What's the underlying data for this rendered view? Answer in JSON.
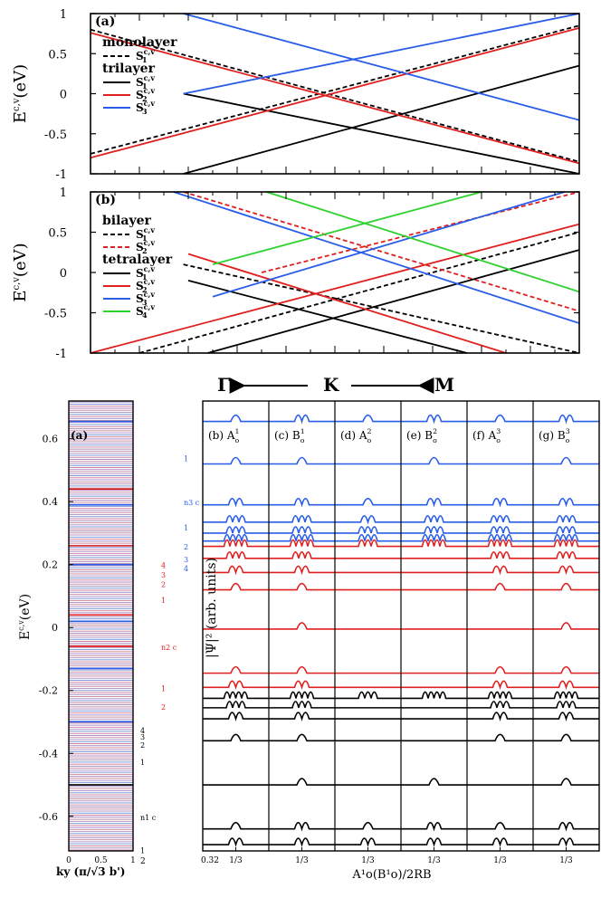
{
  "chart_data": [
    {
      "type": "line",
      "panel_label": "(a)",
      "ylabel": "E^{c,v} (eV)",
      "ylim": [
        -1,
        1
      ],
      "y_ticks": [
        "1",
        "0.5",
        "0",
        "-0.5",
        "-1"
      ],
      "x_path": [
        "Γ",
        "K",
        "M"
      ],
      "legend": [
        {
          "heading": "monolayer"
        },
        {
          "name": "S1 c,v",
          "sub": "1",
          "color": "#000000",
          "dash": true
        },
        {
          "heading": "trilayer"
        },
        {
          "name": "S1 c,v",
          "sub": "1",
          "color": "#000000",
          "dash": false
        },
        {
          "name": "S2 c,v",
          "sub": "2",
          "color": "#e02020",
          "dash": false
        },
        {
          "name": "S3 c,v",
          "sub": "3",
          "color": "#2a5de8",
          "dash": false
        }
      ],
      "series": [
        {
          "name": "mono c",
          "color": "#000000",
          "dash": true,
          "x": [
            0,
            1
          ],
          "y": [
            0.8,
            -0.85
          ]
        },
        {
          "name": "mono v",
          "color": "#000000",
          "dash": true,
          "x": [
            0,
            1
          ],
          "y": [
            -0.75,
            0.85
          ]
        },
        {
          "name": "S1 c",
          "color": "#000000",
          "dash": false,
          "x": [
            0.19,
            1
          ],
          "y": [
            0.0,
            -1.0
          ]
        },
        {
          "name": "S1 v",
          "color": "#000000",
          "dash": false,
          "x": [
            0.19,
            1
          ],
          "y": [
            -1.0,
            0.35
          ]
        },
        {
          "name": "S2 c",
          "color": "#e02020",
          "dash": false,
          "x": [
            0,
            1
          ],
          "y": [
            0.76,
            -0.87
          ]
        },
        {
          "name": "S2 v",
          "color": "#e02020",
          "dash": false,
          "x": [
            0,
            1
          ],
          "y": [
            -0.8,
            0.82
          ]
        },
        {
          "name": "S3 c",
          "color": "#2a5de8",
          "dash": false,
          "x": [
            0.19,
            1
          ],
          "y": [
            1.0,
            -0.33
          ]
        },
        {
          "name": "S3 v",
          "color": "#2a5de8",
          "dash": false,
          "x": [
            0.19,
            1
          ],
          "y": [
            0.0,
            1.0
          ]
        }
      ]
    },
    {
      "type": "line",
      "panel_label": "(b)",
      "ylabel": "E^{c,v} (eV)",
      "ylim": [
        -1,
        1
      ],
      "y_ticks": [
        "1",
        "0.5",
        "0",
        "-0.5",
        "-1"
      ],
      "x_path": [
        "Γ",
        "K",
        "M"
      ],
      "legend": [
        {
          "heading": "bilayer"
        },
        {
          "name": "S1 c,v",
          "sub": "1",
          "color": "#000000",
          "dash": true
        },
        {
          "name": "S2 c,v",
          "sub": "2",
          "color": "#e02020",
          "dash": true
        },
        {
          "heading": "tetralayer"
        },
        {
          "name": "S1 c,v",
          "sub": "1",
          "color": "#000000",
          "dash": false
        },
        {
          "name": "S2 c,v",
          "sub": "2",
          "color": "#e02020",
          "dash": false
        },
        {
          "name": "S3 c,v",
          "sub": "3",
          "color": "#2a5de8",
          "dash": false
        },
        {
          "name": "S4 c,v",
          "sub": "4",
          "color": "#2ed22e",
          "dash": false
        }
      ],
      "series": [
        {
          "name": "bi S1 c",
          "color": "#000000",
          "dash": true,
          "x": [
            0.19,
            1
          ],
          "y": [
            0.1,
            -1.0
          ]
        },
        {
          "name": "bi S1 v",
          "color": "#000000",
          "dash": true,
          "x": [
            0.1,
            1
          ],
          "y": [
            -1.0,
            0.5
          ]
        },
        {
          "name": "bi S2 c",
          "color": "#e02020",
          "dash": true,
          "x": [
            0.19,
            1
          ],
          "y": [
            1.0,
            -0.48
          ]
        },
        {
          "name": "bi S2 v",
          "color": "#e02020",
          "dash": true,
          "x": [
            0.35,
            1
          ],
          "y": [
            0.0,
            1.0
          ]
        },
        {
          "name": "S1 c",
          "color": "#000000",
          "dash": false,
          "x": [
            0.2,
            0.77
          ],
          "y": [
            -0.1,
            -1.0
          ]
        },
        {
          "name": "S1 v",
          "color": "#000000",
          "dash": false,
          "x": [
            0.24,
            1
          ],
          "y": [
            -1.0,
            0.28
          ]
        },
        {
          "name": "S2 c",
          "color": "#e02020",
          "dash": false,
          "x": [
            0.2,
            0.85
          ],
          "y": [
            0.23,
            -1.0
          ]
        },
        {
          "name": "S2 v",
          "color": "#e02020",
          "dash": false,
          "x": [
            0,
            1
          ],
          "y": [
            -1.0,
            0.6
          ]
        },
        {
          "name": "S3 c",
          "color": "#2a5de8",
          "dash": false,
          "x": [
            0.17,
            1
          ],
          "y": [
            1.0,
            -0.63
          ]
        },
        {
          "name": "S3 v",
          "color": "#2a5de8",
          "dash": false,
          "x": [
            0.25,
            0.97
          ],
          "y": [
            -0.3,
            1.0
          ]
        },
        {
          "name": "S4 c",
          "color": "#2ed22e",
          "dash": false,
          "x": [
            0.36,
            1
          ],
          "y": [
            1.0,
            -0.24
          ]
        },
        {
          "name": "S4 v",
          "color": "#2ed22e",
          "dash": false,
          "x": [
            0.25,
            0.8
          ],
          "y": [
            0.1,
            1.0
          ]
        }
      ]
    },
    {
      "type": "line",
      "panel_label": "(a)",
      "description": "Landau-level energy spectrum",
      "ylabel": "E^{c,v} (eV)",
      "xlabel": "ky (π/√3 b')",
      "xlim": [
        0,
        1
      ],
      "ylim": [
        -0.71,
        0.72
      ],
      "x_ticks": [
        "0",
        "0.5",
        "1"
      ],
      "y_ticks": [
        "0.6",
        "0.4",
        "0.2",
        "0",
        "-0.2",
        "-0.4",
        "-0.6"
      ],
      "level_labels": [
        {
          "text": "1",
          "color": "#2a5de8",
          "e": 0.54
        },
        {
          "text": "n3 c",
          "color": "#2a5de8",
          "e": 0.4
        },
        {
          "text": "1",
          "color": "#2a5de8",
          "e": 0.32
        },
        {
          "text": "2",
          "color": "#2a5de8",
          "e": 0.26
        },
        {
          "text": "3",
          "color": "#2a5de8",
          "e": 0.22
        },
        {
          "text": "4",
          "color": "#2a5de8",
          "e": 0.19
        },
        {
          "text": "4",
          "color": "#e02020",
          "e": 0.2
        },
        {
          "text": "3",
          "color": "#e02020",
          "e": 0.17
        },
        {
          "text": "2",
          "color": "#e02020",
          "e": 0.14
        },
        {
          "text": "1",
          "color": "#e02020",
          "e": 0.09
        },
        {
          "text": "n2 c",
          "color": "#e02020",
          "e": -0.06
        },
        {
          "text": "1",
          "color": "#e02020",
          "e": -0.19
        },
        {
          "text": "2",
          "color": "#e02020",
          "e": -0.25
        },
        {
          "text": "4",
          "color": "#000000",
          "e": -0.325
        },
        {
          "text": "3",
          "color": "#000000",
          "e": -0.345
        },
        {
          "text": "2",
          "color": "#000000",
          "e": -0.37
        },
        {
          "text": "1",
          "color": "#000000",
          "e": -0.425
        },
        {
          "text": "n1 c",
          "color": "#000000",
          "e": -0.6
        },
        {
          "text": "1",
          "color": "#000000",
          "e": -0.705
        }
      ],
      "bottom_tick_extra": "2"
    },
    {
      "type": "line",
      "description": "Landau-level wavefunctions",
      "ylabel": "|Ψ|² (arb. units)",
      "xlabel": "A¹o(B¹o)/2RB",
      "x_tick_first": "0.32",
      "x_tick": "1/3",
      "columns": [
        {
          "label": "(b) A",
          "sup": "1",
          "sub": "o"
        },
        {
          "label": "(c) B",
          "sup": "1",
          "sub": "o"
        },
        {
          "label": "(d) A",
          "sup": "2",
          "sub": "o"
        },
        {
          "label": "(e) B",
          "sup": "2",
          "sub": "o"
        },
        {
          "label": "(f) A",
          "sup": "3",
          "sub": "o"
        },
        {
          "label": "(g) B",
          "sup": "3",
          "sub": "o"
        }
      ],
      "levels": [
        {
          "e": 0.655,
          "color": "#2a5de8",
          "peaks": [
            1,
            2,
            1,
            2,
            1,
            2
          ]
        },
        {
          "e": 0.52,
          "color": "#2a5de8",
          "peaks": [
            1,
            1,
            0,
            1,
            0,
            1
          ]
        },
        {
          "e": 0.39,
          "color": "#2a5de8",
          "peaks": [
            2,
            2,
            1,
            2,
            2,
            2
          ]
        },
        {
          "e": 0.335,
          "color": "#2a5de8",
          "peaks": [
            3,
            3,
            2,
            3,
            3,
            3
          ]
        },
        {
          "e": 0.3,
          "color": "#2a5de8",
          "peaks": [
            3,
            3,
            3,
            3,
            3,
            3
          ]
        },
        {
          "e": 0.275,
          "color": "#2a5de8",
          "peaks": [
            4,
            4,
            3,
            4,
            4,
            4
          ]
        },
        {
          "e": 0.258,
          "color": "#e02020",
          "peaks": [
            4,
            4,
            3,
            4,
            4,
            4
          ]
        },
        {
          "e": 0.22,
          "color": "#e02020",
          "peaks": [
            3,
            3,
            0,
            0,
            3,
            3
          ]
        },
        {
          "e": 0.175,
          "color": "#e02020",
          "peaks": [
            2,
            2,
            0,
            0,
            2,
            2
          ]
        },
        {
          "e": 0.12,
          "color": "#e02020",
          "peaks": [
            1,
            1,
            0,
            0,
            1,
            1
          ]
        },
        {
          "e": -0.005,
          "color": "#e02020",
          "peaks": [
            0,
            1,
            0,
            0,
            0,
            1
          ]
        },
        {
          "e": -0.145,
          "color": "#e02020",
          "peaks": [
            1,
            1,
            0,
            0,
            1,
            1
          ]
        },
        {
          "e": -0.19,
          "color": "#e02020",
          "peaks": [
            2,
            2,
            0,
            0,
            2,
            2
          ]
        },
        {
          "e": -0.225,
          "color": "#000000",
          "peaks": [
            4,
            4,
            3,
            4,
            4,
            4
          ]
        },
        {
          "e": -0.255,
          "color": "#000000",
          "peaks": [
            3,
            3,
            0,
            0,
            3,
            3
          ]
        },
        {
          "e": -0.29,
          "color": "#000000",
          "peaks": [
            2,
            2,
            0,
            0,
            2,
            2
          ]
        },
        {
          "e": -0.36,
          "color": "#000000",
          "peaks": [
            1,
            1,
            0,
            0,
            1,
            1
          ]
        },
        {
          "e": -0.5,
          "color": "#000000",
          "peaks": [
            0,
            1,
            0,
            1,
            0,
            1
          ]
        },
        {
          "e": -0.64,
          "color": "#000000",
          "peaks": [
            1,
            2,
            1,
            2,
            1,
            2
          ]
        },
        {
          "e": -0.69,
          "color": "#000000",
          "peaks": [
            2,
            2,
            2,
            2,
            2,
            2
          ]
        }
      ]
    }
  ]
}
